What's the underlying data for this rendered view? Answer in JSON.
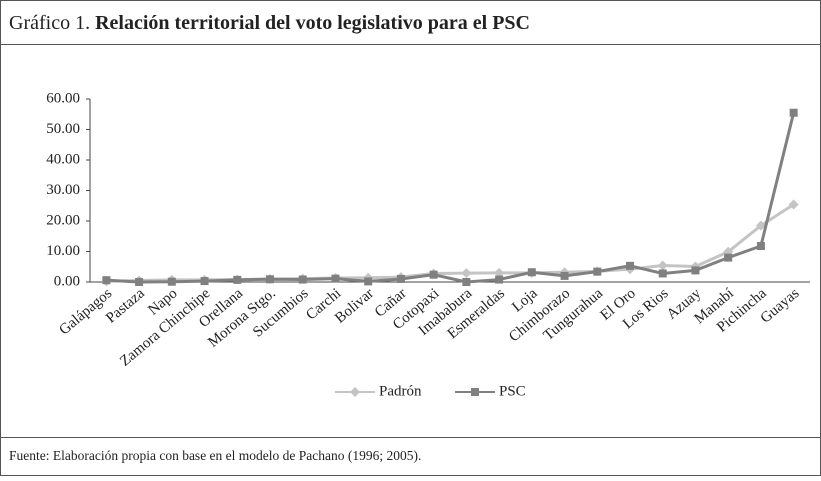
{
  "chart_data": {
    "type": "line",
    "label": "Gráfico 1.",
    "title": "Relación territorial del voto legislativo para el PSC",
    "source": "Fuente: Elaboración propia con base en el modelo de Pachano (1996; 2005).",
    "categories": [
      "Galápagos",
      "Pastaza",
      "Napo",
      "Zamora Chinchipe",
      "Orellana",
      "Morona Stgo.",
      "Sucumbios",
      "Carchi",
      "Bolivar",
      "Cañar",
      "Cotopaxi",
      "Imababura",
      "Esmeraldas",
      "Loja",
      "Chimborazo",
      "Tungurahua",
      "El Oro",
      "Los Rios",
      "Azuay",
      "Manabí",
      "Pichincha",
      "Guayas"
    ],
    "series": [
      {
        "name": "Padrón",
        "color": "#c4c4c4",
        "marker": "diamond",
        "values": [
          0.2,
          0.5,
          0.7,
          0.7,
          0.8,
          1.0,
          1.1,
          1.3,
          1.4,
          1.6,
          2.8,
          2.9,
          3.0,
          3.0,
          3.2,
          3.5,
          4.2,
          5.4,
          5.1,
          9.9,
          18.5,
          25.4
        ]
      },
      {
        "name": "PSC",
        "color": "#808080",
        "marker": "square",
        "values": [
          0.6,
          0.0,
          0.1,
          0.3,
          0.7,
          0.9,
          0.8,
          1.1,
          0.2,
          1.0,
          2.4,
          0.0,
          0.8,
          3.2,
          2.0,
          3.4,
          5.3,
          2.8,
          3.8,
          8.0,
          11.8,
          55.5
        ]
      }
    ],
    "ylim": [
      0,
      60
    ],
    "yticks": [
      {
        "value": 0,
        "label": "0.00"
      },
      {
        "value": 10,
        "label": "10.00"
      },
      {
        "value": 20,
        "label": "20.00"
      },
      {
        "value": 30,
        "label": "30.00"
      },
      {
        "value": 40,
        "label": "40.00"
      },
      {
        "value": 50,
        "label": "50.00"
      },
      {
        "value": 60,
        "label": "60.00"
      }
    ],
    "legend": "bottom"
  }
}
